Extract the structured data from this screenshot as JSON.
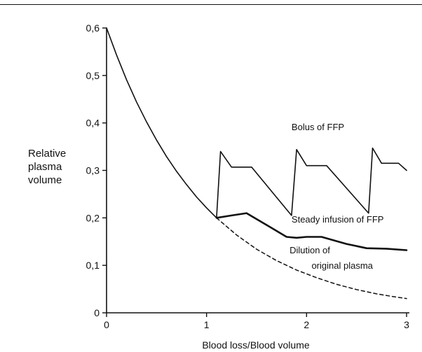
{
  "chart_data": {
    "type": "line",
    "xlabel": "Blood loss/Blood volume",
    "ylabel_lines": [
      "Relative",
      "plasma",
      "volume"
    ],
    "xlim": [
      0,
      3
    ],
    "ylim": [
      0,
      0.6
    ],
    "x_ticks": [
      0,
      1,
      2,
      3
    ],
    "x_tick_labels": [
      "0",
      "1",
      "2",
      "3"
    ],
    "y_ticks": [
      0,
      0.1,
      0.2,
      0.3,
      0.4,
      0.5,
      0.6
    ],
    "y_tick_labels": [
      "0",
      "0,1",
      "0,2",
      "0,3",
      "0,4",
      "0,5",
      "0,6"
    ],
    "grid": false,
    "series": [
      {
        "name": "Bolus of FFP",
        "style": "solid-thin",
        "points": [
          [
            0,
            0.6
          ],
          [
            0.1,
            0.543
          ],
          [
            0.2,
            0.491
          ],
          [
            0.3,
            0.444
          ],
          [
            0.4,
            0.402
          ],
          [
            0.5,
            0.364
          ],
          [
            0.6,
            0.329
          ],
          [
            0.7,
            0.298
          ],
          [
            0.8,
            0.27
          ],
          [
            0.9,
            0.244
          ],
          [
            1.0,
            0.221
          ],
          [
            1.1,
            0.2
          ],
          [
            1.14,
            0.34
          ],
          [
            1.25,
            0.307
          ],
          [
            1.45,
            0.307
          ],
          [
            1.85,
            0.205
          ],
          [
            1.9,
            0.344
          ],
          [
            2.0,
            0.31
          ],
          [
            2.2,
            0.31
          ],
          [
            2.62,
            0.21
          ],
          [
            2.66,
            0.347
          ],
          [
            2.75,
            0.315
          ],
          [
            2.92,
            0.315
          ],
          [
            3.0,
            0.3
          ]
        ]
      },
      {
        "name": "Steady infusion of FFP",
        "style": "solid-thick",
        "points": [
          [
            1.1,
            0.2
          ],
          [
            1.25,
            0.205
          ],
          [
            1.4,
            0.21
          ],
          [
            1.6,
            0.185
          ],
          [
            1.8,
            0.16
          ],
          [
            1.9,
            0.158
          ],
          [
            2.0,
            0.16
          ],
          [
            2.15,
            0.16
          ],
          [
            2.4,
            0.145
          ],
          [
            2.6,
            0.136
          ],
          [
            2.8,
            0.135
          ],
          [
            3.0,
            0.132
          ]
        ]
      },
      {
        "name": "Dilution of original plasma",
        "style": "dashed",
        "points": [
          [
            1.1,
            0.2
          ],
          [
            1.3,
            0.164
          ],
          [
            1.5,
            0.134
          ],
          [
            1.7,
            0.11
          ],
          [
            1.9,
            0.09
          ],
          [
            2.1,
            0.074
          ],
          [
            2.3,
            0.06
          ],
          [
            2.5,
            0.049
          ],
          [
            2.7,
            0.04
          ],
          [
            2.9,
            0.033
          ],
          [
            3.0,
            0.03
          ]
        ]
      }
    ],
    "annotations": [
      {
        "text": "Bolus of FFP",
        "x": 1.85,
        "y": 0.385
      },
      {
        "text": "Steady infusion of FFP",
        "x": 1.85,
        "y": 0.19
      },
      {
        "text": "Dilution of",
        "x": 1.83,
        "y": 0.125
      },
      {
        "text": "original plasma",
        "x": 2.05,
        "y": 0.093
      }
    ]
  }
}
